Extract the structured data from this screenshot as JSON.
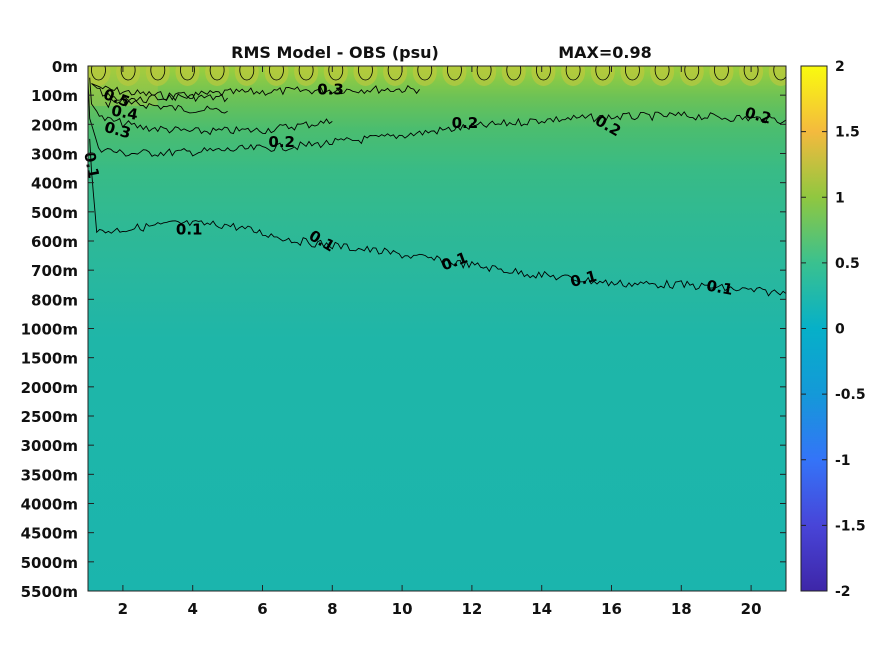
{
  "chart_data": {
    "type": "heatmap",
    "title": "RMS Model - OBS (psu)",
    "max_label": "MAX=0.98",
    "colormap": "parula",
    "xlim": [
      1,
      21
    ],
    "x_ticks": [
      2,
      4,
      6,
      8,
      10,
      12,
      14,
      16,
      18,
      20
    ],
    "y_tick_labels": [
      "0m",
      "100m",
      "200m",
      "300m",
      "400m",
      "500m",
      "600m",
      "700m",
      "800m",
      "1000m",
      "1500m",
      "2000m",
      "2500m",
      "3000m",
      "3500m",
      "4000m",
      "4500m",
      "5000m",
      "5500m"
    ],
    "colorbar": {
      "range": [
        -2,
        2
      ],
      "ticks": [
        2,
        1.5,
        1,
        0.5,
        0,
        -0.5,
        -1,
        -1.5,
        -2
      ],
      "tick_labels": [
        "2",
        "1.5",
        "1",
        "0.5",
        "0",
        "-0.5",
        "-1",
        "-1.5",
        "-2"
      ]
    },
    "contours": [
      {
        "level": 0.5,
        "label": "0.5",
        "depth_index": [
          0.6,
          0.8,
          0.95,
          1.05,
          1.1
        ],
        "x": [
          1.1,
          1.5,
          2.5,
          3.5,
          5.0
        ]
      },
      {
        "level": 0.4,
        "label": "0.4",
        "depth_index": [
          0.6,
          1.0,
          1.3,
          1.45,
          1.55
        ],
        "x": [
          1.1,
          1.5,
          2.5,
          3.5,
          5.0
        ]
      },
      {
        "level": 0.3,
        "label": "0.3",
        "depth_index": [
          1.3,
          1.1,
          0.92,
          0.85,
          0.8,
          0.8
        ],
        "x": [
          1.5,
          3.0,
          5.0,
          7.0,
          9.0,
          10.5
        ]
      },
      {
        "level": 0.3,
        "label": "0.3",
        "depth_index": [
          0.4,
          1.3,
          1.8,
          2.1,
          2.25,
          2.2,
          1.9
        ],
        "x": [
          1.05,
          1.1,
          1.4,
          2.5,
          4.0,
          6.0,
          8.0
        ]
      },
      {
        "level": 0.2,
        "label": "0.2",
        "depth_index": [
          0.5,
          1.8,
          2.8,
          3.0,
          2.95,
          2.75,
          2.45,
          2.15,
          1.85,
          1.75,
          1.7,
          1.85
        ],
        "x": [
          1.0,
          1.05,
          1.3,
          2.0,
          4.0,
          7.0,
          9.5,
          11.5,
          14.0,
          16.0,
          18.0,
          21.0
        ]
      },
      {
        "level": 0.1,
        "label": "0.1",
        "depth_index": [
          2.5,
          3.6,
          4.3,
          5.7,
          5.6,
          5.4,
          5.45,
          6.0,
          6.3,
          6.65,
          7.1,
          7.45,
          7.5,
          7.8
        ],
        "x": [
          1.05,
          1.1,
          1.15,
          1.25,
          2.0,
          3.5,
          5.0,
          7.0,
          9.0,
          11.0,
          13.5,
          16.0,
          18.0,
          21.0
        ]
      }
    ],
    "contour_labels": [
      {
        "label": "0.5",
        "x": 1.82,
        "depth_index": 1.1,
        "angle": 20
      },
      {
        "label": "0.4",
        "x": 2.05,
        "depth_index": 1.6,
        "angle": 10
      },
      {
        "label": "0.3",
        "x": 1.85,
        "depth_index": 2.2,
        "angle": 15
      },
      {
        "label": "0.3",
        "x": 7.95,
        "depth_index": 0.8,
        "angle": 0
      },
      {
        "label": "0.1",
        "x": 1.1,
        "depth_index": 3.4,
        "angle": 80
      },
      {
        "label": "0.2",
        "x": 6.55,
        "depth_index": 2.6,
        "angle": 0
      },
      {
        "label": "0.2",
        "x": 11.8,
        "depth_index": 1.95,
        "angle": 0
      },
      {
        "label": "0.2",
        "x": 15.9,
        "depth_index": 2.05,
        "angle": 30
      },
      {
        "label": "0.2",
        "x": 20.2,
        "depth_index": 1.7,
        "angle": 15
      },
      {
        "label": "0.1",
        "x": 3.9,
        "depth_index": 5.6,
        "angle": 0
      },
      {
        "label": "0.1",
        "x": 7.7,
        "depth_index": 6.0,
        "angle": 30
      },
      {
        "label": "0.1",
        "x": 11.5,
        "depth_index": 6.7,
        "angle": -20
      },
      {
        "label": "0.1",
        "x": 15.2,
        "depth_index": 7.3,
        "angle": -15
      },
      {
        "label": "0.1",
        "x": 19.1,
        "depth_index": 7.6,
        "angle": 10
      }
    ],
    "field_bands": [
      {
        "depth_index": [
          0,
          1
        ],
        "value": 0.7
      },
      {
        "depth_index": [
          1,
          2
        ],
        "value": 0.45
      },
      {
        "depth_index": [
          2,
          3
        ],
        "value": 0.25
      },
      {
        "depth_index": [
          3,
          4
        ],
        "value": 0.18
      },
      {
        "depth_index": [
          4,
          6
        ],
        "value": 0.13
      },
      {
        "depth_index": [
          6,
          8
        ],
        "value": 0.09
      },
      {
        "depth_index": [
          8,
          9
        ],
        "value": 0.06
      },
      {
        "depth_index": [
          9,
          18
        ],
        "value": 0.03
      }
    ]
  }
}
